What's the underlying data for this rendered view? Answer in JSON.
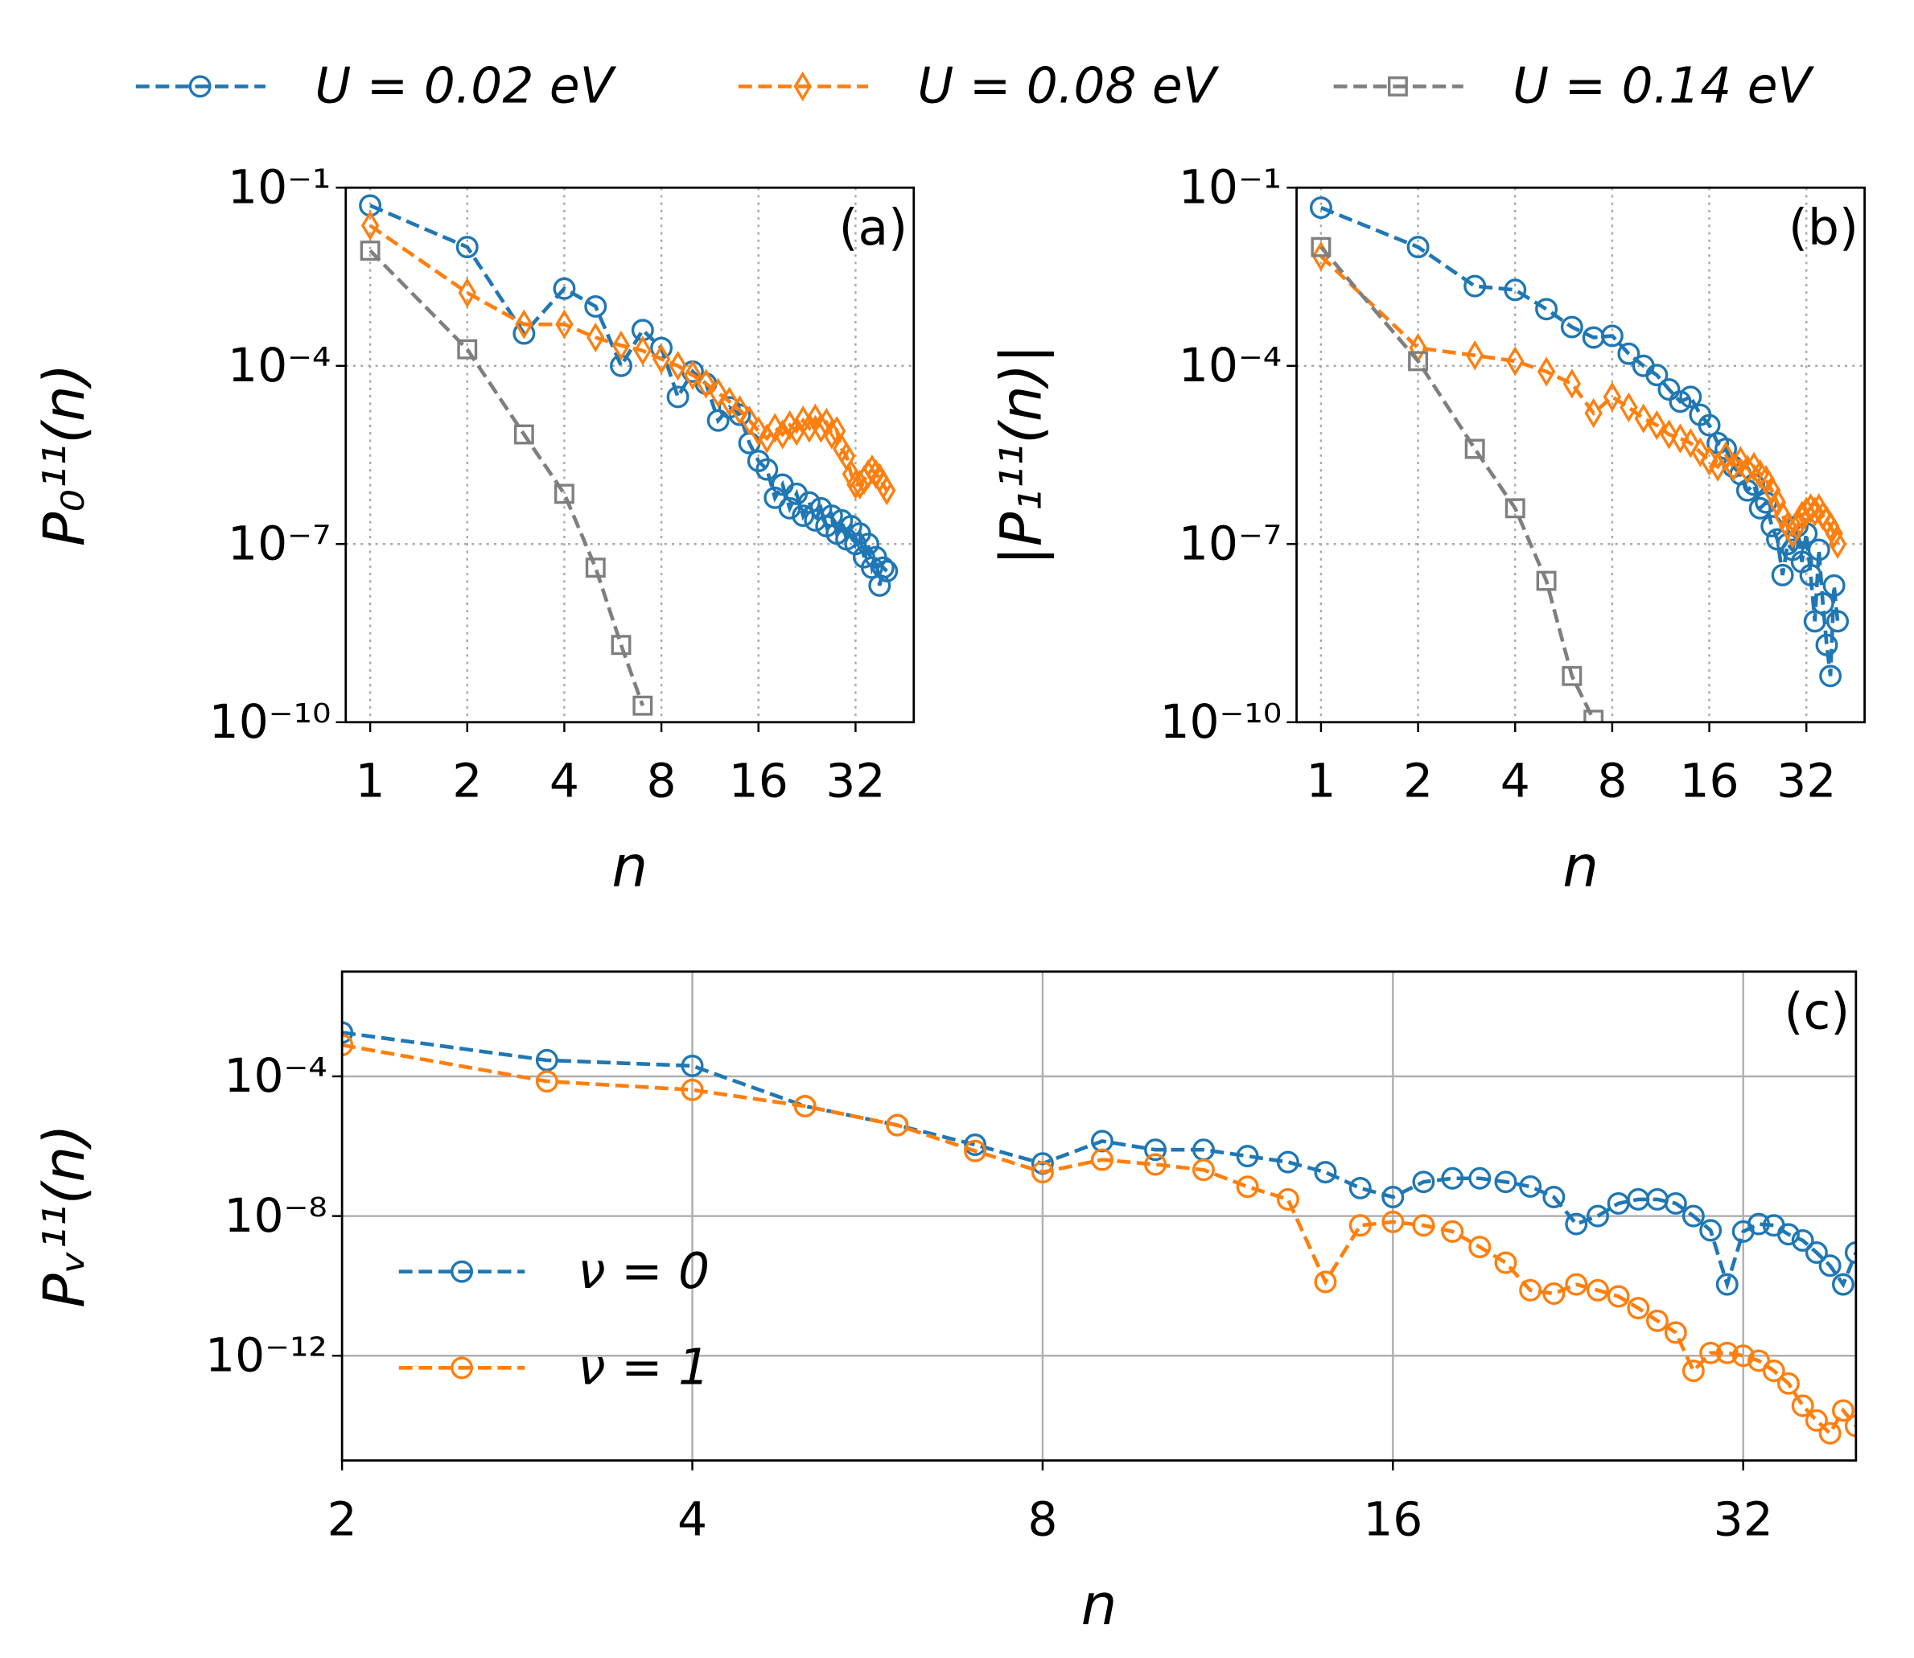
{
  "chart_data": [
    {
      "type": "line",
      "panel": "(a)",
      "xlabel": "n",
      "ylabel": "P₀¹¹(n)",
      "xscale": "log",
      "yscale": "log",
      "grid": "dotted",
      "legend": "above",
      "xlim": [
        0.84,
        48.5
      ],
      "ylim": [
        1e-10,
        0.1
      ],
      "xticks": [
        1,
        2,
        4,
        8,
        16,
        32
      ],
      "yticks": [
        {
          "value": 1e-10,
          "label": "10⁻¹⁰"
        },
        {
          "value": 1e-07,
          "label": "10⁻⁷"
        },
        {
          "value": 0.0001,
          "label": "10⁻⁴"
        },
        {
          "value": 0.1,
          "label": "10⁻¹"
        }
      ],
      "series": [
        {
          "name": "U = 0.02 eV",
          "color": "#1f77b4",
          "marker": "circle",
          "x": [
            1,
            2,
            3,
            4,
            5,
            6,
            7,
            8,
            9,
            10,
            11,
            12,
            13,
            14,
            15,
            16,
            17,
            18,
            19,
            20,
            21,
            22,
            23,
            24,
            25,
            26,
            27,
            28,
            29,
            30,
            31,
            32,
            33,
            34,
            35,
            36,
            37,
            38,
            39,
            40
          ],
          "values": [
            0.05,
            0.01,
            0.00035,
            0.002,
            0.001,
            0.0001,
            0.0004,
            0.0002,
            3e-05,
            8e-05,
            5e-05,
            1.2e-05,
            2e-05,
            1.5e-05,
            5e-06,
            2.5e-06,
            1.8e-06,
            6e-07,
            1e-06,
            4e-07,
            7e-07,
            3e-07,
            5e-07,
            2.5e-07,
            4e-07,
            2e-07,
            3e-07,
            1.5e-07,
            2.5e-07,
            1.2e-07,
            2e-07,
            1e-07,
            1.5e-07,
            6e-08,
            1e-07,
            4e-08,
            6e-08,
            2e-08,
            4e-08,
            3.5e-08
          ]
        },
        {
          "name": "U = 0.08 eV",
          "color": "#ff7f0e",
          "marker": "diamond",
          "x": [
            1,
            2,
            3,
            4,
            5,
            6,
            7,
            8,
            9,
            10,
            11,
            12,
            13,
            14,
            15,
            16,
            17,
            18,
            19,
            20,
            21,
            22,
            23,
            24,
            25,
            26,
            27,
            28,
            29,
            30,
            31,
            32,
            33,
            34,
            35,
            36,
            37,
            38,
            39,
            40
          ],
          "values": [
            0.023,
            0.0017,
            0.0005,
            0.0005,
            0.0003,
            0.00022,
            0.00018,
            0.00013,
            0.0001,
            7e-05,
            5e-05,
            3.5e-05,
            2.5e-05,
            1.8e-05,
            1.2e-05,
            8e-06,
            6e-06,
            9e-06,
            7e-06,
            1e-05,
            8e-06,
            1.2e-05,
            9e-06,
            1.3e-05,
            9e-06,
            1.1e-05,
            7e-06,
            8e-06,
            4e-06,
            3e-06,
            1.5e-06,
            1e-06,
            1e-06,
            1.2e-06,
            1.5e-06,
            1.8e-06,
            1.5e-06,
            1.3e-06,
            1e-06,
            8e-07
          ]
        },
        {
          "name": "U = 0.14 eV",
          "color": "#7f7f7f",
          "marker": "square",
          "x": [
            1,
            2,
            3,
            4,
            5,
            6,
            7
          ],
          "values": [
            0.0087,
            0.00019,
            7e-06,
            7e-07,
            4e-08,
            2e-09,
            1.9e-10
          ]
        }
      ]
    },
    {
      "type": "line",
      "panel": "(b)",
      "xlabel": "n",
      "ylabel": "|P₁¹¹(n)|",
      "xscale": "log",
      "yscale": "log",
      "grid": "dotted",
      "xlim": [
        0.84,
        48.5
      ],
      "ylim": [
        1e-10,
        0.1
      ],
      "xticks": [
        1,
        2,
        4,
        8,
        16,
        32
      ],
      "yticks": [
        {
          "value": 1e-10,
          "label": "10⁻¹⁰"
        },
        {
          "value": 1e-07,
          "label": "10⁻⁷"
        },
        {
          "value": 0.0001,
          "label": "10⁻⁴"
        },
        {
          "value": 0.1,
          "label": "10⁻¹"
        }
      ],
      "series": [
        {
          "color": "#1f77b4",
          "marker": "circle",
          "x": [
            1,
            2,
            3,
            4,
            5,
            6,
            7,
            8,
            9,
            10,
            11,
            12,
            13,
            14,
            15,
            16,
            17,
            18,
            19,
            20,
            21,
            22,
            23,
            24,
            25,
            26,
            27,
            28,
            29,
            30,
            31,
            32,
            33,
            34,
            35,
            36,
            37,
            38,
            39,
            40
          ],
          "values": [
            0.046,
            0.01,
            0.0022,
            0.0019,
            0.0009,
            0.00045,
            0.0003,
            0.00032,
            0.00016,
            0.0001,
            7e-05,
            4e-05,
            2.5e-05,
            3e-05,
            1.5e-05,
            1e-05,
            5e-06,
            4e-06,
            2e-06,
            1.5e-06,
            8e-07,
            1e-06,
            4e-07,
            5e-07,
            2e-07,
            1.2e-07,
            3e-08,
            1e-07,
            8e-08,
            2e-07,
            5e-08,
            1.5e-07,
            3e-08,
            5e-09,
            8e-08,
            1e-08,
            2e-09,
            6e-10,
            2e-08,
            5e-09
          ]
        },
        {
          "color": "#ff7f0e",
          "marker": "diamond",
          "x": [
            1,
            2,
            3,
            4,
            5,
            6,
            7,
            8,
            9,
            10,
            11,
            12,
            13,
            14,
            15,
            16,
            17,
            18,
            19,
            20,
            21,
            22,
            23,
            24,
            25,
            26,
            27,
            28,
            29,
            30,
            31,
            32,
            33,
            34,
            35,
            36,
            37,
            38,
            39,
            40
          ],
          "values": [
            0.007,
            0.0002,
            0.00015,
            0.00012,
            8e-05,
            5e-05,
            1.6e-05,
            3e-05,
            2e-05,
            1.3e-05,
            1e-05,
            7e-06,
            6e-06,
            5e-06,
            3.5e-06,
            2.5e-06,
            2e-06,
            3e-06,
            2e-06,
            2.5e-06,
            1.8e-06,
            2e-06,
            1.5e-06,
            1.2e-06,
            8e-07,
            5e-07,
            3e-07,
            2e-07,
            1.5e-07,
            2e-07,
            3e-07,
            3.5e-07,
            4e-07,
            3.5e-07,
            4e-07,
            3e-07,
            2.5e-07,
            2e-07,
            1.5e-07,
            1e-07
          ]
        },
        {
          "color": "#7f7f7f",
          "marker": "square",
          "x": [
            1,
            2,
            3,
            4,
            5,
            6,
            7
          ],
          "values": [
            0.01,
            0.00012,
            4e-06,
            4e-07,
            2.4e-08,
            6e-10,
            1.1e-10
          ]
        }
      ]
    },
    {
      "type": "line",
      "panel": "(c)",
      "xlabel": "n",
      "ylabel": "Pᵥ¹¹(n)",
      "xscale": "log",
      "yscale": "log",
      "grid": "solid",
      "legend": "lower left",
      "xlim": [
        2,
        40
      ],
      "ylim": [
        1e-15,
        0.1
      ],
      "xticks": [
        2,
        4,
        8,
        16,
        32
      ],
      "yticks": [
        {
          "value": 1e-12,
          "label": "10⁻¹²"
        },
        {
          "value": 1e-08,
          "label": "10⁻⁸"
        },
        {
          "value": 0.0001,
          "label": "10⁻⁴"
        }
      ],
      "series": [
        {
          "name": "ν = 0",
          "color": "#1f77b4",
          "marker": "circle",
          "x": [
            2,
            3,
            4,
            5,
            6,
            7,
            8,
            9,
            10,
            11,
            12,
            13,
            14,
            15,
            16,
            17,
            18,
            19,
            20,
            21,
            22,
            23,
            24,
            25,
            26,
            27,
            28,
            29,
            30,
            31,
            32,
            33,
            34,
            35,
            36,
            37,
            38,
            39,
            40
          ],
          "values": [
            0.0018,
            0.00029,
            0.0002,
            1.4e-05,
            4e-06,
            1.1e-06,
            3.2e-07,
            1.4e-06,
            7.9e-07,
            7.9e-07,
            5.2e-07,
            3.5e-07,
            1.8e-07,
            6.3e-08,
            3.5e-08,
            9.5e-08,
            1.2e-07,
            1.2e-07,
            9.5e-08,
            7e-08,
            3.5e-08,
            5.9e-09,
            1e-08,
            2.3e-08,
            3e-08,
            3e-08,
            2.3e-08,
            1e-08,
            3.9e-09,
            1.1e-10,
            3.6e-09,
            5.9e-09,
            5.4e-09,
            3e-09,
            2e-09,
            9e-10,
            3.8e-10,
            1.1e-10,
            9e-10
          ]
        },
        {
          "name": "ν = 1",
          "color": "#ff7f0e",
          "marker": "circle",
          "x": [
            2,
            3,
            4,
            5,
            6,
            7,
            8,
            9,
            10,
            11,
            12,
            13,
            14,
            15,
            16,
            17,
            18,
            19,
            20,
            21,
            22,
            23,
            24,
            25,
            26,
            27,
            28,
            29,
            30,
            31,
            32,
            33,
            34,
            35,
            36,
            37,
            38,
            39,
            40
          ],
          "values": [
            0.00079,
            7.2e-05,
            4.1e-05,
            1.4e-05,
            4e-06,
            7.3e-07,
            1.8e-07,
            4.1e-07,
            3e-07,
            2.1e-07,
            6.9e-08,
            3e-08,
            1.3e-10,
            5.4e-09,
            6.8e-09,
            5.4e-09,
            3.6e-09,
            1.3e-09,
            4.6e-10,
            7.5e-11,
            6e-11,
            1.1e-10,
            7.5e-11,
            5e-11,
            2.3e-11,
            1e-11,
            4.6e-12,
            3.7e-13,
            1.2e-12,
            1.2e-12,
            1e-12,
            7.2e-13,
            3.7e-13,
            1.6e-13,
            3.7e-14,
            1.4e-14,
            6e-15,
            2.7e-14,
            9.7e-15
          ]
        }
      ]
    }
  ]
}
